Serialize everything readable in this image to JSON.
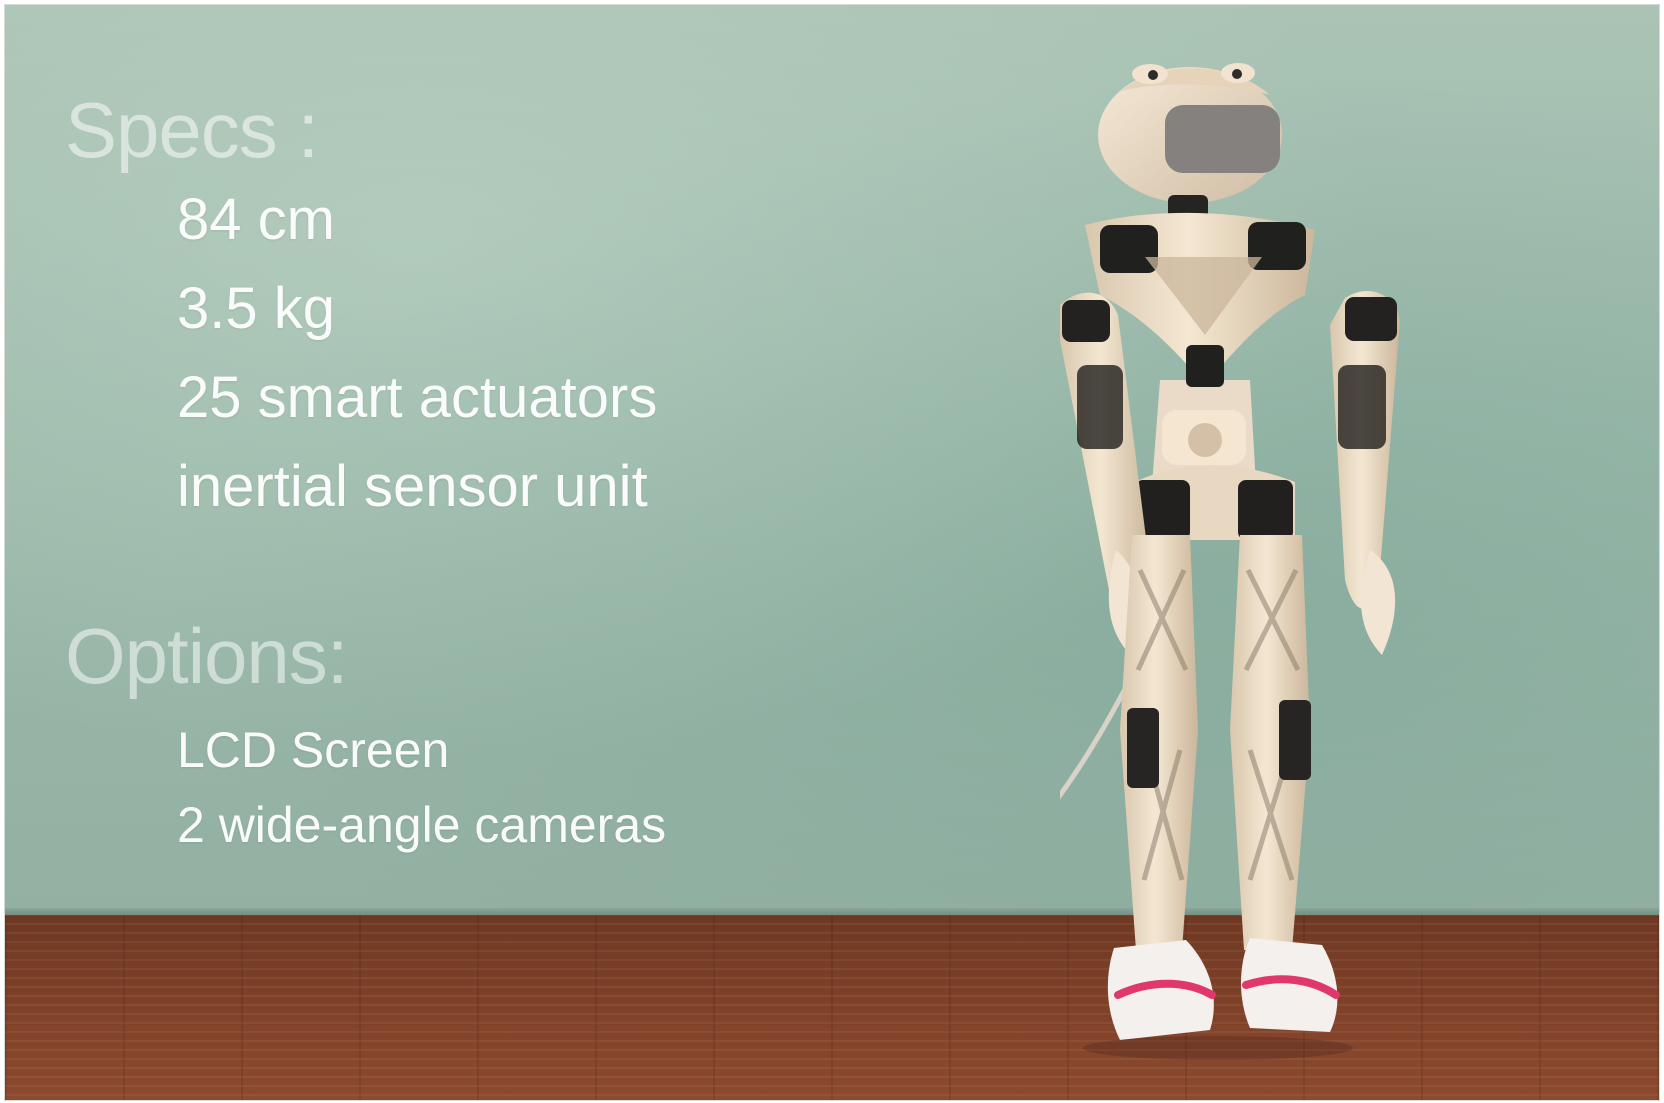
{
  "scene": {
    "specs": {
      "heading": "Specs :",
      "items": [
        "84 cm",
        "3.5 kg",
        "25 smart actuators",
        "inertial sensor unit"
      ]
    },
    "options": {
      "heading": "Options:",
      "items": [
        "LCD Screen",
        "2 wide-angle cameras"
      ]
    }
  },
  "colors": {
    "wall": "#9bbaab",
    "floor": "#7b3f27",
    "robot_body": "#f1e3ce",
    "robot_joints": "#1f1d1c",
    "shoe_stripe": "#e0386a"
  }
}
